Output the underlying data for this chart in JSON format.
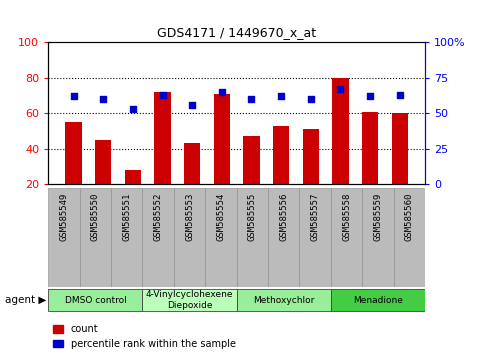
{
  "title": "GDS4171 / 1449670_x_at",
  "categories": [
    "GSM585549",
    "GSM585550",
    "GSM585551",
    "GSM585552",
    "GSM585553",
    "GSM585554",
    "GSM585555",
    "GSM585556",
    "GSM585557",
    "GSM585558",
    "GSM585559",
    "GSM585560"
  ],
  "counts": [
    55,
    45,
    28,
    72,
    43,
    71,
    47,
    53,
    51,
    80,
    61,
    60
  ],
  "percentile_ranks_pct": [
    62,
    60,
    53,
    63,
    56,
    65,
    60,
    62,
    60,
    67,
    62,
    63
  ],
  "agent_groups": [
    {
      "label": "DMSO control",
      "start": 0,
      "end": 3,
      "color": "#99ee99"
    },
    {
      "label": "4-Vinylcyclohexene\nDiepoxide",
      "start": 3,
      "end": 6,
      "color": "#bbffbb"
    },
    {
      "label": "Methoxychlor",
      "start": 6,
      "end": 9,
      "color": "#99ee99"
    },
    {
      "label": "Menadione",
      "start": 9,
      "end": 12,
      "color": "#44cc44"
    }
  ],
  "ylim_left": [
    20,
    100
  ],
  "ylim_right": [
    0,
    100
  ],
  "yticks_left": [
    20,
    40,
    60,
    80,
    100
  ],
  "ytick_labels_left": [
    "20",
    "40",
    "60",
    "80",
    "100"
  ],
  "yticks_right": [
    0,
    25,
    50,
    75,
    100
  ],
  "ytick_labels_right": [
    "0",
    "25",
    "50",
    "75",
    "100%"
  ],
  "bar_color": "#cc0000",
  "dot_color": "#0000cc",
  "bg_color": "#ffffff",
  "tick_area_color": "#bbbbbb",
  "legend_count": "count",
  "legend_pct": "percentile rank within the sample"
}
